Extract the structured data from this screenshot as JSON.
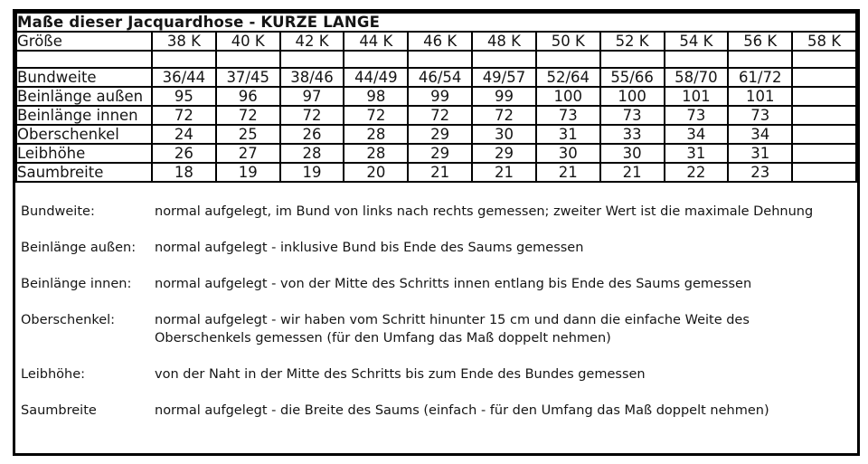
{
  "title": "Maße dieser Jacquardhose  - KURZE LANGE",
  "table": {
    "corner_label": "Größe",
    "size_columns": [
      "38 K",
      "40 K",
      "42 K",
      "44 K",
      "46 K",
      "48 K",
      "50 K",
      "52 K",
      "54 K",
      "56 K",
      "58 K"
    ],
    "rows": [
      {
        "label": "Bundweite",
        "values": [
          "36/44",
          "37/45",
          "38/46",
          "44/49",
          "46/54",
          "49/57",
          "52/64",
          "55/66",
          "58/70",
          "61/72",
          ""
        ]
      },
      {
        "label": "Beinlänge außen",
        "values": [
          "95",
          "96",
          "97",
          "98",
          "99",
          "99",
          "100",
          "100",
          "101",
          "101",
          ""
        ]
      },
      {
        "label": "Beinlänge innen",
        "values": [
          "72",
          "72",
          "72",
          "72",
          "72",
          "72",
          "73",
          "73",
          "73",
          "73",
          ""
        ]
      },
      {
        "label": "Oberschenkel",
        "values": [
          "24",
          "25",
          "26",
          "28",
          "29",
          "30",
          "31",
          "33",
          "34",
          "34",
          ""
        ]
      },
      {
        "label": "Leibhöhe",
        "values": [
          "26",
          "27",
          "28",
          "28",
          "29",
          "29",
          "30",
          "30",
          "31",
          "31",
          ""
        ]
      },
      {
        "label": "Saumbreite",
        "values": [
          "18",
          "19",
          "19",
          "20",
          "21",
          "21",
          "21",
          "21",
          "22",
          "23",
          ""
        ]
      }
    ]
  },
  "descriptions": [
    {
      "label": "Bundweite:",
      "text": "normal aufgelegt, im Bund von links nach rechts gemessen; zweiter Wert ist die maximale Dehnung"
    },
    {
      "label": "Beinlänge außen:",
      "text": "normal aufgelegt - inklusive Bund bis Ende des Saums gemessen"
    },
    {
      "label": "Beinlänge innen:",
      "text": "normal aufgelegt - von der Mitte des Schritts innen entlang bis Ende des Saums gemessen"
    },
    {
      "label": "Oberschenkel:",
      "text": "normal aufgelegt - wir haben vom Schritt hinunter 15 cm und dann die einfache Weite des Oberschenkels gemessen (für den Umfang das Maß doppelt nehmen)"
    },
    {
      "label": "Leibhöhe:",
      "text": "von der Naht in der Mitte des Schritts bis zum Ende des Bundes gemessen"
    },
    {
      "label": "Saumbreite",
      "text": "normal aufgelegt - die Breite des Saums (einfach - für den Umfang das Maß doppelt nehmen)"
    }
  ],
  "colors": {
    "border": "#000000",
    "background": "#ffffff",
    "text": "#151515"
  }
}
